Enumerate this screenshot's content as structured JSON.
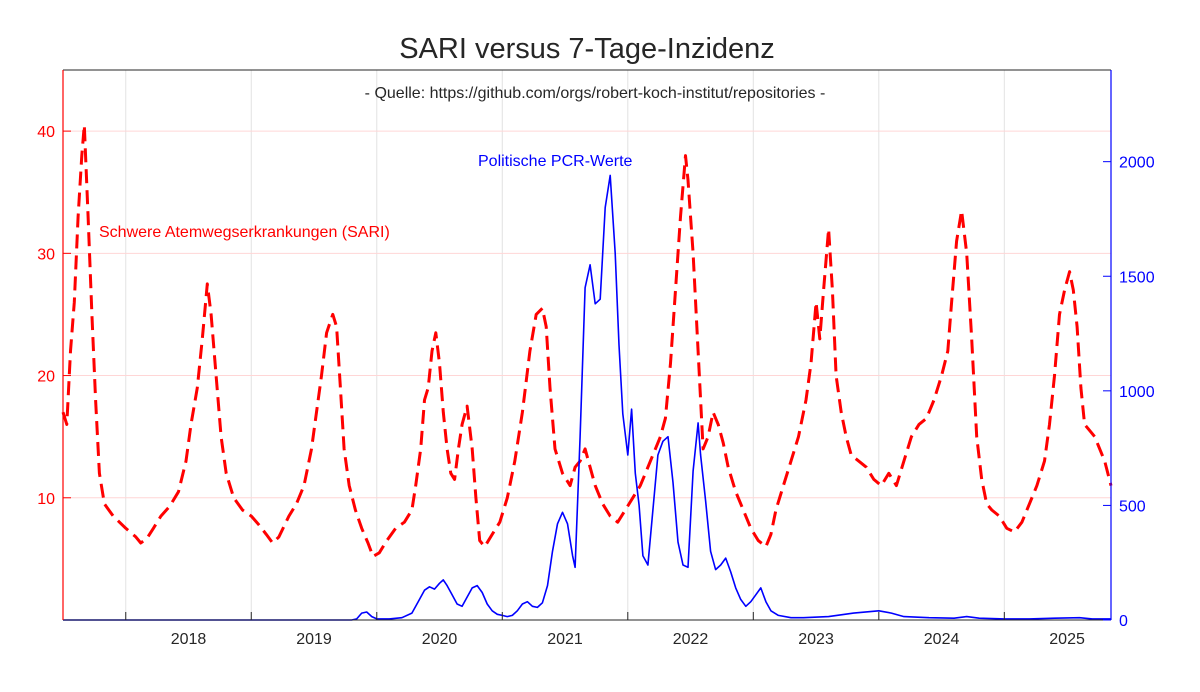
{
  "chart_data": {
    "type": "line",
    "title": "SARI versus 7-Tage-Inzidenz",
    "subtitle": "- Quelle: https://github.com/orgs/robert-koch-institut/repositories -",
    "xlabel": "",
    "x_ticks": [
      "2018",
      "2019",
      "2020",
      "2021",
      "2022",
      "2023",
      "2024",
      "2025"
    ],
    "x_range": [
      2017.5,
      2025.85
    ],
    "y_left": {
      "ticks": [
        "10",
        "20",
        "30",
        "40"
      ],
      "range": [
        0,
        45
      ],
      "color": "#ff0000"
    },
    "y_right": {
      "ticks": [
        "0",
        "500",
        "1000",
        "1500",
        "2000"
      ],
      "range": [
        0,
        2400
      ],
      "color": "#0000ff"
    },
    "grid": true,
    "annotations": {
      "sari_label": "Schwere Atemwegserkrankungen (SARI)",
      "pcr_label": "Politische PCR-Werte"
    },
    "series": [
      {
        "name": "Schwere Atemwegserkrankungen (SARI)",
        "axis": "left",
        "color": "#ff0000",
        "style": "dashed",
        "points": [
          [
            2017.5,
            17
          ],
          [
            2017.53,
            16
          ],
          [
            2017.56,
            22
          ],
          [
            2017.59,
            26
          ],
          [
            2017.62,
            33
          ],
          [
            2017.65,
            38
          ],
          [
            2017.67,
            40.5
          ],
          [
            2017.7,
            33
          ],
          [
            2017.73,
            25
          ],
          [
            2017.76,
            18
          ],
          [
            2017.79,
            12
          ],
          [
            2017.83,
            9.5
          ],
          [
            2017.9,
            8.5
          ],
          [
            2018.0,
            7.5
          ],
          [
            2018.08,
            6.8
          ],
          [
            2018.12,
            6.3
          ],
          [
            2018.17,
            6.7
          ],
          [
            2018.22,
            7.5
          ],
          [
            2018.28,
            8.5
          ],
          [
            2018.35,
            9.3
          ],
          [
            2018.42,
            10.5
          ],
          [
            2018.48,
            13
          ],
          [
            2018.52,
            16
          ],
          [
            2018.57,
            19
          ],
          [
            2018.61,
            23
          ],
          [
            2018.65,
            27.5
          ],
          [
            2018.68,
            25
          ],
          [
            2018.72,
            20
          ],
          [
            2018.76,
            15
          ],
          [
            2018.8,
            12
          ],
          [
            2018.86,
            10
          ],
          [
            2018.93,
            9
          ],
          [
            2019.0,
            8.5
          ],
          [
            2019.06,
            7.8
          ],
          [
            2019.12,
            7
          ],
          [
            2019.17,
            6.3
          ],
          [
            2019.22,
            6.8
          ],
          [
            2019.3,
            8.5
          ],
          [
            2019.36,
            9.5
          ],
          [
            2019.42,
            11
          ],
          [
            2019.48,
            14
          ],
          [
            2019.52,
            17
          ],
          [
            2019.56,
            20
          ],
          [
            2019.6,
            23.5
          ],
          [
            2019.65,
            25
          ],
          [
            2019.68,
            24
          ],
          [
            2019.71,
            19
          ],
          [
            2019.74,
            14
          ],
          [
            2019.78,
            11
          ],
          [
            2019.83,
            9
          ],
          [
            2019.88,
            7.5
          ],
          [
            2019.93,
            6.3
          ],
          [
            2019.97,
            5.2
          ],
          [
            2020.02,
            5.5
          ],
          [
            2020.08,
            6.5
          ],
          [
            2020.15,
            7.5
          ],
          [
            2020.22,
            8
          ],
          [
            2020.28,
            9
          ],
          [
            2020.31,
            11
          ],
          [
            2020.35,
            14
          ],
          [
            2020.38,
            18
          ],
          [
            2020.41,
            19
          ],
          [
            2020.44,
            22
          ],
          [
            2020.47,
            23.5
          ],
          [
            2020.5,
            21
          ],
          [
            2020.53,
            17
          ],
          [
            2020.56,
            14
          ],
          [
            2020.59,
            12
          ],
          [
            2020.62,
            11.5
          ],
          [
            2020.65,
            14
          ],
          [
            2020.68,
            16
          ],
          [
            2020.72,
            17.5
          ],
          [
            2020.76,
            14
          ],
          [
            2020.79,
            10
          ],
          [
            2020.82,
            6.5
          ],
          [
            2020.86,
            6
          ],
          [
            2020.92,
            7
          ],
          [
            2020.98,
            8
          ],
          [
            2021.04,
            10
          ],
          [
            2021.1,
            13
          ],
          [
            2021.16,
            17
          ],
          [
            2021.22,
            22
          ],
          [
            2021.27,
            25
          ],
          [
            2021.32,
            25.5
          ],
          [
            2021.35,
            24
          ],
          [
            2021.38,
            19
          ],
          [
            2021.42,
            14
          ],
          [
            2021.48,
            12
          ],
          [
            2021.54,
            11
          ],
          [
            2021.58,
            12.5
          ],
          [
            2021.62,
            13
          ],
          [
            2021.66,
            14
          ],
          [
            2021.7,
            12.5
          ],
          [
            2021.74,
            11
          ],
          [
            2021.8,
            9.5
          ],
          [
            2021.86,
            8.5
          ],
          [
            2021.92,
            8
          ],
          [
            2021.98,
            9
          ],
          [
            2022.04,
            10
          ],
          [
            2022.1,
            11
          ],
          [
            2022.14,
            12
          ],
          [
            2022.18,
            13
          ],
          [
            2022.22,
            14
          ],
          [
            2022.26,
            15
          ],
          [
            2022.3,
            16.5
          ],
          [
            2022.34,
            21
          ],
          [
            2022.38,
            27
          ],
          [
            2022.42,
            33
          ],
          [
            2022.46,
            38
          ],
          [
            2022.48,
            36
          ],
          [
            2022.52,
            30
          ],
          [
            2022.56,
            22
          ],
          [
            2022.6,
            14
          ],
          [
            2022.64,
            15
          ],
          [
            2022.68,
            17
          ],
          [
            2022.72,
            16
          ],
          [
            2022.76,
            14.5
          ],
          [
            2022.8,
            12.5
          ],
          [
            2022.86,
            10.5
          ],
          [
            2022.92,
            9
          ],
          [
            2022.98,
            7.5
          ],
          [
            2023.04,
            6.5
          ],
          [
            2023.1,
            6
          ],
          [
            2023.14,
            7
          ],
          [
            2023.18,
            9
          ],
          [
            2023.24,
            11
          ],
          [
            2023.3,
            13
          ],
          [
            2023.36,
            15
          ],
          [
            2023.42,
            18
          ],
          [
            2023.46,
            21
          ],
          [
            2023.5,
            26
          ],
          [
            2023.53,
            23
          ],
          [
            2023.56,
            27
          ],
          [
            2023.6,
            32
          ],
          [
            2023.63,
            27
          ],
          [
            2023.66,
            20
          ],
          [
            2023.7,
            17
          ],
          [
            2023.74,
            15
          ],
          [
            2023.78,
            13.5
          ],
          [
            2023.84,
            13
          ],
          [
            2023.9,
            12.5
          ],
          [
            2023.96,
            11.5
          ],
          [
            2024.02,
            11
          ],
          [
            2024.08,
            12
          ],
          [
            2024.14,
            11
          ],
          [
            2024.2,
            13
          ],
          [
            2024.26,
            15
          ],
          [
            2024.32,
            16
          ],
          [
            2024.38,
            16.5
          ],
          [
            2024.44,
            18
          ],
          [
            2024.5,
            20
          ],
          [
            2024.55,
            22
          ],
          [
            2024.58,
            26
          ],
          [
            2024.62,
            31
          ],
          [
            2024.66,
            33.5
          ],
          [
            2024.7,
            30
          ],
          [
            2024.74,
            23
          ],
          [
            2024.78,
            15
          ],
          [
            2024.82,
            11.5
          ],
          [
            2024.86,
            9.5
          ],
          [
            2024.9,
            9
          ],
          [
            2024.96,
            8.5
          ],
          [
            2025.02,
            7.5
          ],
          [
            2025.08,
            7.2
          ],
          [
            2025.14,
            8
          ],
          [
            2025.2,
            9.5
          ],
          [
            2025.26,
            11
          ],
          [
            2025.32,
            13
          ],
          [
            2025.36,
            16
          ],
          [
            2025.4,
            20
          ],
          [
            2025.44,
            25
          ],
          [
            2025.48,
            27
          ],
          [
            2025.52,
            28.5
          ],
          [
            2025.55,
            27
          ],
          [
            2025.58,
            24
          ],
          [
            2025.61,
            19
          ],
          [
            2025.64,
            16
          ],
          [
            2025.68,
            15.5
          ],
          [
            2025.72,
            15
          ],
          [
            2025.76,
            14
          ],
          [
            2025.8,
            13
          ],
          [
            2025.85,
            11
          ]
        ]
      },
      {
        "name": "Politische PCR-Werte",
        "axis": "right",
        "color": "#0000ff",
        "style": "solid",
        "points": [
          [
            2017.5,
            0
          ],
          [
            2019.8,
            0
          ],
          [
            2019.84,
            5
          ],
          [
            2019.88,
            30
          ],
          [
            2019.92,
            35
          ],
          [
            2019.96,
            15
          ],
          [
            2020.0,
            5
          ],
          [
            2020.1,
            5
          ],
          [
            2020.2,
            10
          ],
          [
            2020.28,
            30
          ],
          [
            2020.33,
            80
          ],
          [
            2020.38,
            130
          ],
          [
            2020.42,
            145
          ],
          [
            2020.46,
            135
          ],
          [
            2020.5,
            160
          ],
          [
            2020.53,
            175
          ],
          [
            2020.56,
            150
          ],
          [
            2020.6,
            110
          ],
          [
            2020.64,
            70
          ],
          [
            2020.68,
            60
          ],
          [
            2020.72,
            100
          ],
          [
            2020.76,
            140
          ],
          [
            2020.8,
            150
          ],
          [
            2020.84,
            120
          ],
          [
            2020.88,
            70
          ],
          [
            2020.92,
            40
          ],
          [
            2020.96,
            25
          ],
          [
            2021.0,
            20
          ],
          [
            2021.04,
            15
          ],
          [
            2021.08,
            20
          ],
          [
            2021.12,
            40
          ],
          [
            2021.16,
            70
          ],
          [
            2021.2,
            80
          ],
          [
            2021.24,
            60
          ],
          [
            2021.28,
            55
          ],
          [
            2021.32,
            75
          ],
          [
            2021.36,
            150
          ],
          [
            2021.4,
            300
          ],
          [
            2021.44,
            420
          ],
          [
            2021.48,
            470
          ],
          [
            2021.52,
            420
          ],
          [
            2021.56,
            280
          ],
          [
            2021.58,
            230
          ],
          [
            2021.62,
            800
          ],
          [
            2021.66,
            1450
          ],
          [
            2021.7,
            1550
          ],
          [
            2021.74,
            1380
          ],
          [
            2021.78,
            1400
          ],
          [
            2021.82,
            1800
          ],
          [
            2021.86,
            1940
          ],
          [
            2021.9,
            1600
          ],
          [
            2021.93,
            1200
          ],
          [
            2021.96,
            900
          ],
          [
            2022.0,
            720
          ],
          [
            2022.03,
            920
          ],
          [
            2022.06,
            640
          ],
          [
            2022.09,
            500
          ],
          [
            2022.12,
            280
          ],
          [
            2022.16,
            240
          ],
          [
            2022.2,
            480
          ],
          [
            2022.24,
            720
          ],
          [
            2022.28,
            780
          ],
          [
            2022.32,
            800
          ],
          [
            2022.36,
            600
          ],
          [
            2022.4,
            340
          ],
          [
            2022.44,
            240
          ],
          [
            2022.48,
            230
          ],
          [
            2022.52,
            650
          ],
          [
            2022.56,
            860
          ],
          [
            2022.58,
            720
          ],
          [
            2022.62,
            520
          ],
          [
            2022.66,
            300
          ],
          [
            2022.7,
            220
          ],
          [
            2022.74,
            240
          ],
          [
            2022.78,
            270
          ],
          [
            2022.82,
            210
          ],
          [
            2022.86,
            140
          ],
          [
            2022.9,
            90
          ],
          [
            2022.94,
            60
          ],
          [
            2022.98,
            80
          ],
          [
            2023.02,
            110
          ],
          [
            2023.06,
            140
          ],
          [
            2023.1,
            80
          ],
          [
            2023.14,
            40
          ],
          [
            2023.2,
            20
          ],
          [
            2023.3,
            10
          ],
          [
            2023.4,
            10
          ],
          [
            2023.6,
            15
          ],
          [
            2023.8,
            30
          ],
          [
            2024.0,
            40
          ],
          [
            2024.1,
            30
          ],
          [
            2024.2,
            15
          ],
          [
            2024.4,
            10
          ],
          [
            2024.6,
            8
          ],
          [
            2024.7,
            15
          ],
          [
            2024.8,
            8
          ],
          [
            2025.0,
            5
          ],
          [
            2025.2,
            5
          ],
          [
            2025.4,
            8
          ],
          [
            2025.6,
            10
          ],
          [
            2025.7,
            5
          ],
          [
            2025.85,
            5
          ]
        ]
      }
    ]
  }
}
